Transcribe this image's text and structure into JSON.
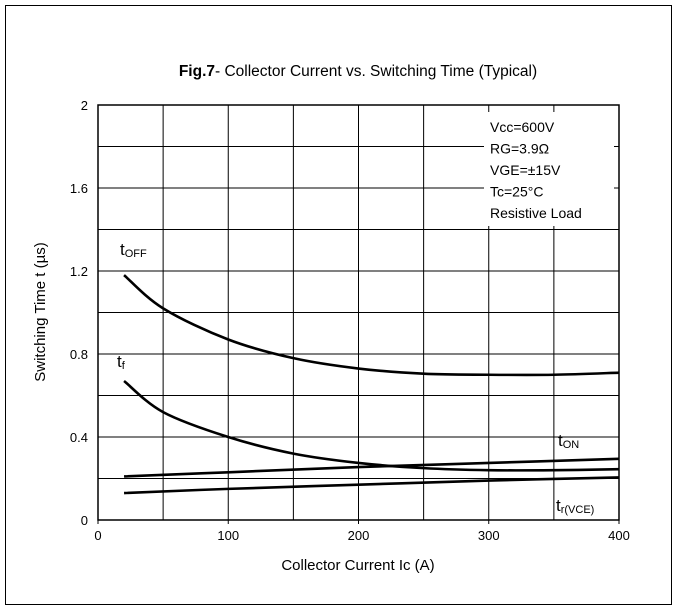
{
  "chart_data": {
    "type": "line",
    "title_bold": "Fig.7",
    "title_rest": "- Collector Current vs. Switching Time (Typical)",
    "xlabel": "Collector Current Ic  (A)",
    "ylabel": "Switching Time t  (µs)",
    "xlim": [
      0,
      400
    ],
    "ylim": [
      0,
      2
    ],
    "xticks": [
      "0",
      "100",
      "200",
      "300",
      "400"
    ],
    "yticks": [
      "0",
      "0.4",
      "0.8",
      "1.2",
      "1.6",
      "2"
    ],
    "grid": true,
    "conditions": [
      "Vcc=600V",
      "RG=3.9Ω",
      "VGE=±15V",
      "Tc=25°C",
      "Resistive Load"
    ],
    "series": [
      {
        "name": "tOFF",
        "x": [
          20,
          50,
          100,
          150,
          200,
          250,
          300,
          350,
          400
        ],
        "y": [
          1.18,
          1.02,
          0.87,
          0.78,
          0.73,
          0.705,
          0.7,
          0.7,
          0.71
        ]
      },
      {
        "name": "tf",
        "x": [
          20,
          50,
          100,
          150,
          200,
          250,
          300,
          350,
          400
        ],
        "y": [
          0.67,
          0.52,
          0.4,
          0.32,
          0.275,
          0.25,
          0.24,
          0.24,
          0.245
        ]
      },
      {
        "name": "tON",
        "x": [
          20,
          100,
          200,
          300,
          400
        ],
        "y": [
          0.21,
          0.23,
          0.255,
          0.275,
          0.295
        ]
      },
      {
        "name": "tr(VCE)",
        "x": [
          20,
          100,
          200,
          300,
          400
        ],
        "y": [
          0.13,
          0.15,
          0.17,
          0.19,
          0.205
        ]
      }
    ]
  }
}
